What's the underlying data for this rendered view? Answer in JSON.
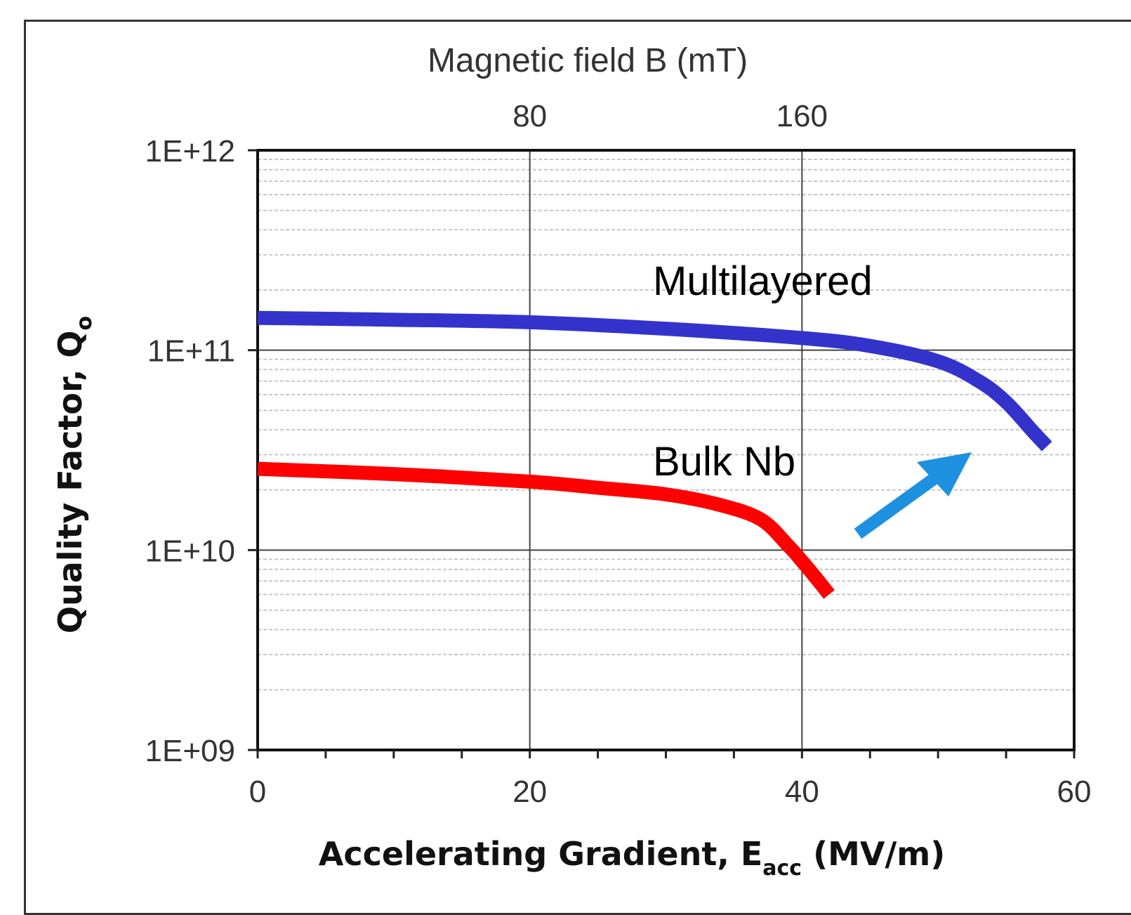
{
  "chart_data": {
    "type": "line",
    "x_axis": {
      "label_main": "Accelerating Gradient, E",
      "label_sub": "acc",
      "label_unit": " (MV/m)",
      "range": [
        0,
        60
      ],
      "ticks": [
        0,
        20,
        40,
        60
      ],
      "tick_labels": [
        "0",
        "20",
        "40",
        "60"
      ]
    },
    "x_axis_top": {
      "label": "Magnetic field B (mT)",
      "ticks": [
        20,
        40
      ],
      "tick_labels": [
        "80",
        "160"
      ]
    },
    "y_axis": {
      "label_main": "Quality Factor, Q",
      "label_sub": "o",
      "scale": "log",
      "range": [
        1000000000.0,
        1000000000000.0
      ],
      "ticks": [
        1000000000.0,
        10000000000.0,
        100000000000.0,
        1000000000000.0
      ],
      "tick_labels": [
        "1E+09",
        "1E+10",
        "1E+11",
        "1E+12"
      ]
    },
    "grid": true,
    "series": [
      {
        "name": "Multilayered",
        "color": "#3333cc",
        "x": [
          0,
          10,
          20,
          30,
          40,
          45,
          50,
          53,
          55,
          57,
          58
        ],
        "y": [
          145000000000.0,
          142000000000.0,
          138000000000.0,
          128000000000.0,
          115000000000.0,
          105000000000.0,
          88000000000.0,
          70000000000.0,
          55000000000.0,
          39000000000.0,
          33000000000.0
        ]
      },
      {
        "name": "Bulk Nb",
        "color": "#ff0000",
        "x": [
          0,
          10,
          20,
          25,
          30,
          34,
          37,
          39,
          40,
          41,
          42
        ],
        "y": [
          25500000000.0,
          24000000000.0,
          22000000000.0,
          20500000000.0,
          19000000000.0,
          16800000000.0,
          14200000000.0,
          10500000000.0,
          8800000000.0,
          7300000000.0,
          6000000000.0
        ]
      }
    ],
    "annotations": {
      "multilayered_label": "Multilayered",
      "bulk_label": "Bulk Nb",
      "arrow_color": "#1e90e0"
    }
  }
}
